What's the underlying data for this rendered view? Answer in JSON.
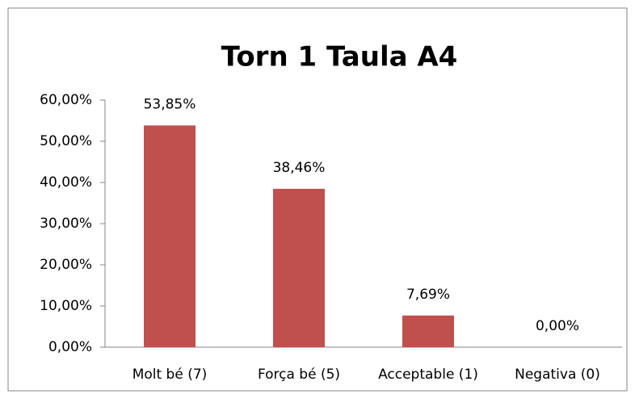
{
  "chart_data": {
    "type": "bar",
    "title": "Torn 1 Taula A4",
    "categories": [
      "Molt bé (7)",
      "Força bé (5)",
      "Acceptable (1)",
      "Negativa (0)"
    ],
    "values": [
      53.85,
      38.46,
      7.69,
      0
    ],
    "value_labels": [
      "53,85%",
      "38,46%",
      "7,69%",
      "0,00%"
    ],
    "color": "#c0504d",
    "ylim": [
      0,
      60
    ],
    "yticks": [
      {
        "value": 0,
        "label": "0,00%"
      },
      {
        "value": 10,
        "label": "10,00%"
      },
      {
        "value": 20,
        "label": "20,00%"
      },
      {
        "value": 30,
        "label": "30,00%"
      },
      {
        "value": 40,
        "label": "40,00%"
      },
      {
        "value": 50,
        "label": "50,00%"
      },
      {
        "value": 60,
        "label": "60,00%"
      }
    ],
    "grid": false
  }
}
